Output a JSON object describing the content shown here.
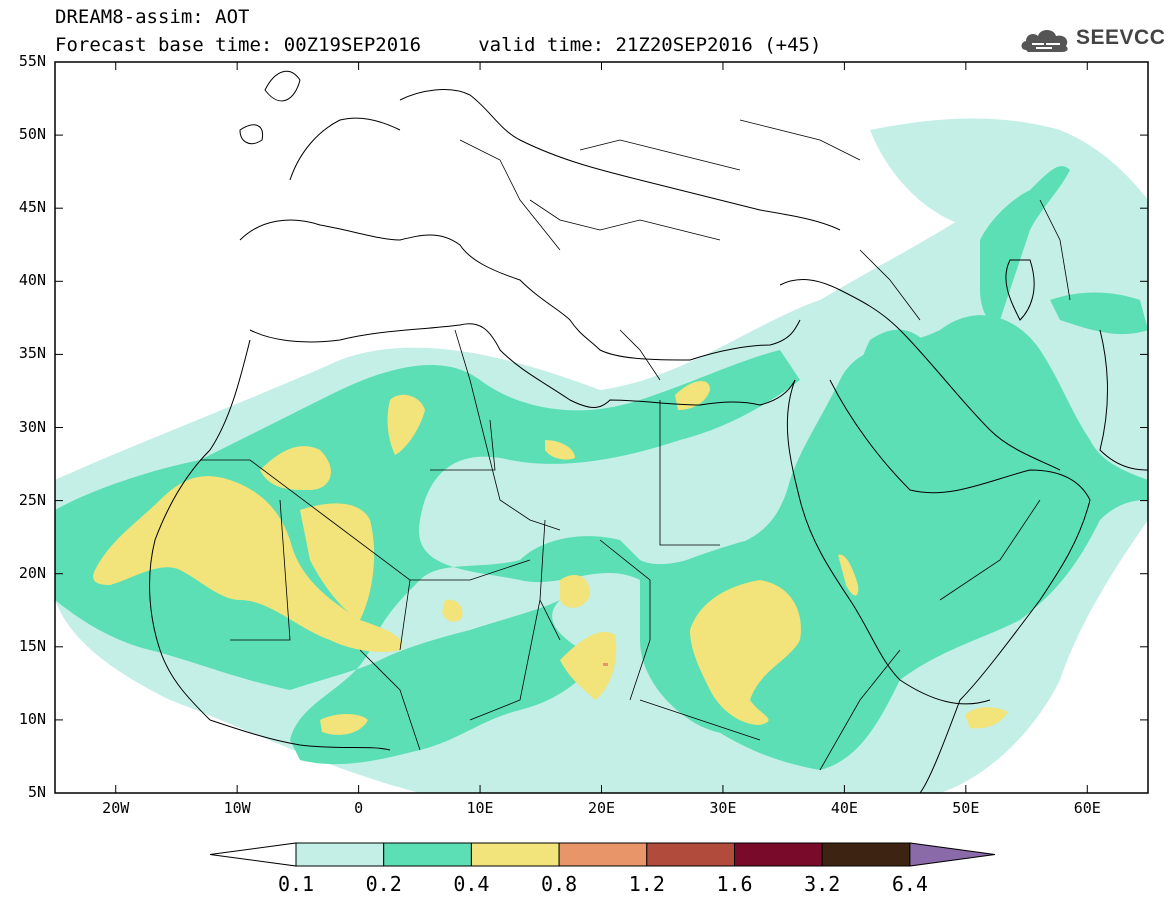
{
  "header": {
    "title_line1": "DREAM8-assim: AOT",
    "title_line2": "Forecast base time: 00Z19SEP2016     valid time: 21Z20SEP2016 (+45)"
  },
  "logo": {
    "text": "SEEVCCC",
    "icon": "cloud-icon"
  },
  "map": {
    "lat_labels": [
      "55N",
      "50N",
      "45N",
      "40N",
      "35N",
      "30N",
      "25N",
      "20N",
      "15N",
      "10N",
      "5N"
    ],
    "lon_labels": [
      "20W",
      "10W",
      "0",
      "10E",
      "20E",
      "30E",
      "40E",
      "50E",
      "60E"
    ],
    "lat_values": [
      55,
      50,
      45,
      40,
      35,
      30,
      25,
      20,
      15,
      10,
      5
    ],
    "lon_values": [
      -20,
      -10,
      0,
      10,
      20,
      30,
      40,
      50,
      60
    ],
    "lon_range": [
      -25,
      65
    ],
    "lat_range": [
      5,
      55
    ]
  },
  "colorbar": {
    "labels": [
      "0.1",
      "0.2",
      "0.4",
      "0.8",
      "1.2",
      "1.6",
      "3.2",
      "6.4"
    ],
    "colors": [
      "#ffffff",
      "#c3efe6",
      "#5cdfb4",
      "#f2e37a",
      "#e8956a",
      "#b14c3d",
      "#7a0a2a",
      "#3d2412",
      "#8a6aa8"
    ]
  },
  "field_colors": {
    "low": "#c3efe6",
    "mid": "#5cdfb4",
    "high": "#f2e37a",
    "peak": "#e8956a"
  }
}
